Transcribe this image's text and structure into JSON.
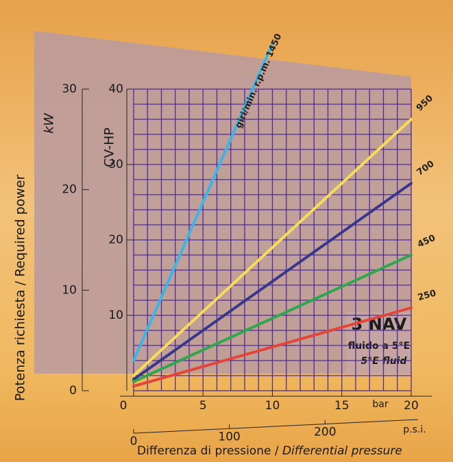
{
  "chart_data": {
    "type": "line",
    "y_title": "CV-HP",
    "y2_title": "kW",
    "side_title": "Potenza richiesta / Required power",
    "x_title_main": "Differenza di pressione / ",
    "x_title_italic": "Differential pressure",
    "x_unit": "bar",
    "x2_unit": "p.s.i.",
    "box_title": "3 NAV",
    "box_line1": "fluido a 5°E",
    "box_line2": "5°E fluid",
    "x": [
      0,
      5,
      10,
      15,
      20
    ],
    "series": [
      {
        "name": "giri/min. r.p.m. 1450",
        "color": "#3db4e8",
        "values": [
          4,
          25,
          46,
          null,
          null
        ]
      },
      {
        "name": "950",
        "color": "#f5dc5a",
        "values": [
          2,
          10.5,
          19,
          27.5,
          36
        ]
      },
      {
        "name": "700",
        "color": "#38378c",
        "values": [
          1.5,
          8,
          14.5,
          21,
          27.5
        ]
      },
      {
        "name": "450",
        "color": "#2ea64e",
        "values": [
          1.2,
          5.4,
          9.6,
          13.8,
          18
        ]
      },
      {
        "name": "250",
        "color": "#e2463a",
        "values": [
          0.6,
          3.2,
          5.8,
          8.4,
          11
        ]
      }
    ],
    "xlim": [
      0,
      20
    ],
    "xticks": [
      0,
      5,
      10,
      15,
      20
    ],
    "ylim": [
      0,
      40
    ],
    "yticks": [
      10,
      20,
      30,
      40
    ],
    "y2lim": [
      0,
      30
    ],
    "y2ticks": [
      0,
      10,
      20,
      30
    ],
    "x2lim": [
      0,
      290
    ],
    "x2ticks": [
      0,
      100,
      200
    ],
    "xminor": [
      0,
      1,
      2,
      3,
      4,
      5,
      6,
      7,
      8,
      9,
      10,
      11,
      12,
      13,
      14,
      15,
      16,
      17,
      18,
      19,
      20
    ],
    "yminor": [
      0,
      2,
      4,
      6,
      8,
      10,
      12,
      14,
      16,
      18,
      20,
      22,
      24,
      26,
      28,
      30,
      32,
      34,
      36,
      38,
      40
    ],
    "grid_color": "#4b2a9a"
  }
}
